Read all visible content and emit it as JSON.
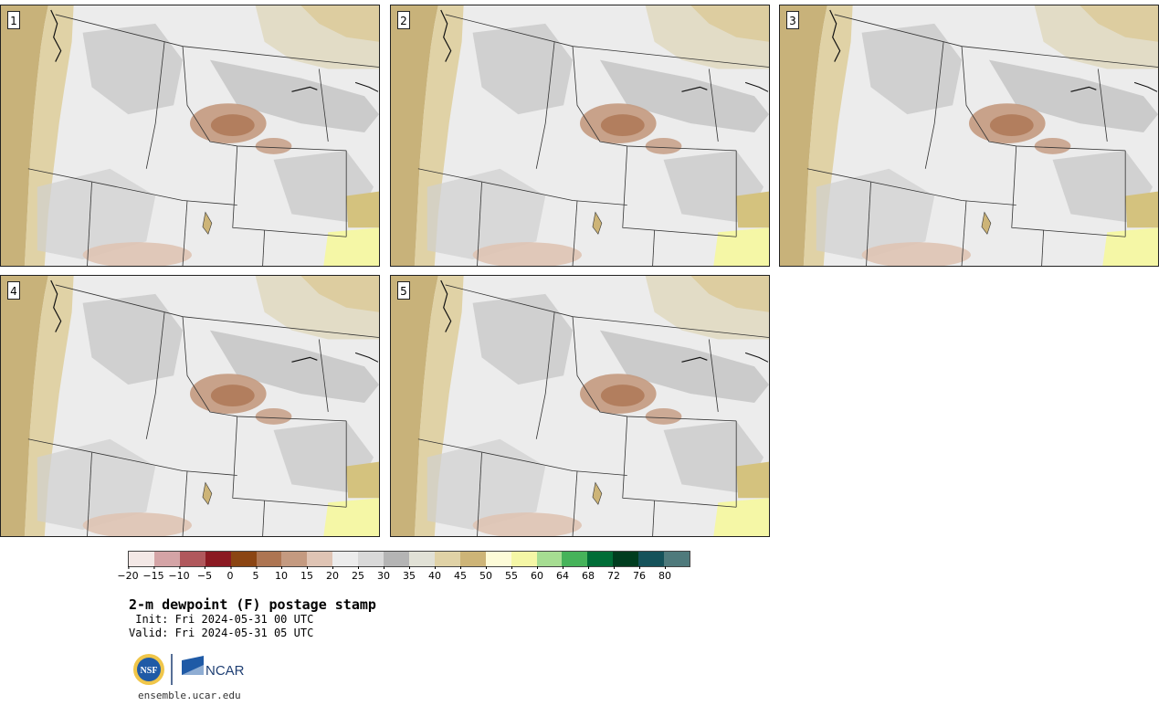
{
  "panels": [
    {
      "label": "1"
    },
    {
      "label": "2"
    },
    {
      "label": "3"
    },
    {
      "label": "4"
    },
    {
      "label": "5"
    }
  ],
  "colorbar": {
    "colors": [
      "#f3e8e6",
      "#d4a4a6",
      "#b0585c",
      "#8b1a22",
      "#8b4513",
      "#ad7552",
      "#c49a80",
      "#dfc4b4",
      "#ececec",
      "#d9d9d9",
      "#b4b4b4",
      "#e1e1d6",
      "#e0d2a6",
      "#cdb477",
      "#fdfbd8",
      "#f5f7a6",
      "#a6dd92",
      "#46b35a",
      "#006d37",
      "#003d1f",
      "#15525a",
      "#4f7a7c"
    ],
    "tick_labels": [
      "−20",
      "−15",
      "−10",
      "−5",
      "0",
      "5",
      "10",
      "15",
      "20",
      "25",
      "30",
      "35",
      "40",
      "45",
      "50",
      "55",
      "60",
      "64",
      "68",
      "72",
      "76",
      "80"
    ]
  },
  "title": "2-m dewpoint (F) postage stamp",
  "init": " Init: Fri 2024-05-31 00 UTC",
  "valid": "Valid: Fri 2024-05-31 05 UTC",
  "logos": {
    "nsf": "NSF",
    "ncar": "NCAR"
  },
  "url": "ensemble.ucar.edu"
}
